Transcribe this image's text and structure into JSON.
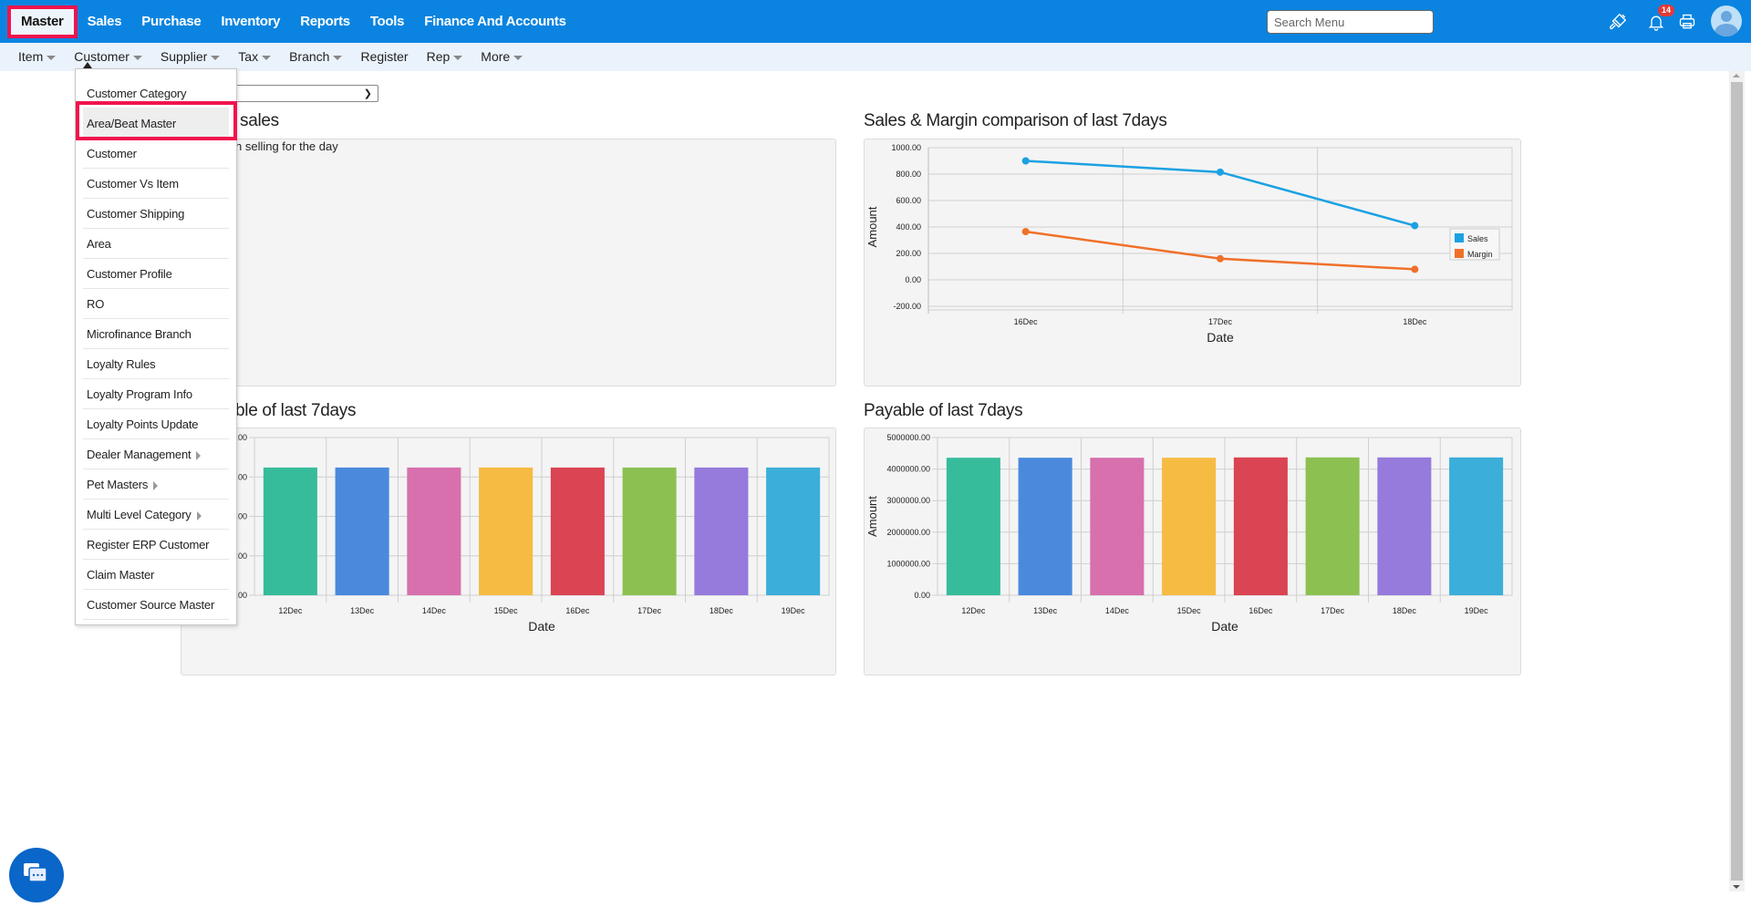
{
  "topnav": {
    "items": [
      {
        "label": "Master",
        "active": true
      },
      {
        "label": "Sales"
      },
      {
        "label": "Purchase"
      },
      {
        "label": "Inventory"
      },
      {
        "label": "Reports"
      },
      {
        "label": "Tools"
      },
      {
        "label": "Finance And Accounts"
      }
    ],
    "search_placeholder": "Search Menu",
    "notification_count": "14",
    "icons": [
      "paint-brush-icon",
      "bell-icon",
      "printer-icon",
      "user-avatar"
    ]
  },
  "subnav": {
    "items": [
      {
        "label": "Item",
        "has_caret": true
      },
      {
        "label": "Customer",
        "has_caret": true
      },
      {
        "label": "Supplier",
        "has_caret": true
      },
      {
        "label": "Tax",
        "has_caret": true
      },
      {
        "label": "Branch",
        "has_caret": true
      },
      {
        "label": "Register",
        "has_caret": false
      },
      {
        "label": "Rep",
        "has_caret": true
      },
      {
        "label": "More",
        "has_caret": true
      }
    ]
  },
  "customer_menu": {
    "items": [
      {
        "label": "Customer Category"
      },
      {
        "label": "Area/Beat Master",
        "hovered": true
      },
      {
        "label": "Customer"
      },
      {
        "label": "Customer Vs Item"
      },
      {
        "label": "Customer Shipping"
      },
      {
        "label": "Area"
      },
      {
        "label": "Customer Profile"
      },
      {
        "label": "RO"
      },
      {
        "label": "Microfinance Branch"
      },
      {
        "label": "Loyalty Rules"
      },
      {
        "label": "Loyalty Program Info"
      },
      {
        "label": "Loyalty Points Update"
      },
      {
        "label": "Dealer Management",
        "submenu": true
      },
      {
        "label": "Pet Masters",
        "submenu": true
      },
      {
        "label": "Multi Level Category",
        "submenu": true
      },
      {
        "label": "Register ERP Customer"
      },
      {
        "label": "Claim Master"
      },
      {
        "label": "Customer Source Master"
      }
    ]
  },
  "dashboard": {
    "top_sales_title": "sales",
    "top_sales_note": "n selling for the day",
    "receivable_title": "ble of last 7days",
    "line_title": "Sales & Margin comparison of last 7days",
    "payable_title": "Payable of last 7days"
  },
  "chart_data": [
    {
      "type": "line",
      "title": "Sales & Margin comparison of last 7days",
      "xlabel": "Date",
      "ylabel": "Amount",
      "categories": [
        "16Dec",
        "17Dec",
        "18Dec"
      ],
      "ylim": [
        -200,
        1000
      ],
      "yticks": [
        "1000.00",
        "800.00",
        "600.00",
        "400.00",
        "200.00",
        "0.00",
        "-200.00"
      ],
      "ytick_values": [
        1000,
        800,
        600,
        400,
        200,
        0,
        -200
      ],
      "grid": true,
      "legend": "right",
      "series": [
        {
          "name": "Sales",
          "color": "#1ba1e2",
          "values": [
            900,
            815,
            410
          ]
        },
        {
          "name": "Margin",
          "color": "#f07029",
          "values": [
            365,
            160,
            80
          ]
        }
      ]
    },
    {
      "type": "bar",
      "title": "Receivable of last 7days (partially hidden)",
      "xlabel": "Date",
      "ylabel": "",
      "categories": [
        "12Dec",
        "13Dec",
        "14Dec",
        "15Dec",
        "16Dec",
        "17Dec",
        "18Dec",
        "19Dec"
      ],
      "ylim": [
        0,
        1
      ],
      "ytick_values": [
        0,
        0.25,
        0.5,
        0.75,
        1
      ],
      "yticks": [
        "0.00",
        ".00",
        ".00",
        ".00",
        ".00"
      ],
      "values": [
        0.81,
        0.81,
        0.81,
        0.81,
        0.81,
        0.81,
        0.81,
        0.81
      ],
      "colors": [
        "#37bc9b",
        "#4a89dc",
        "#d770ad",
        "#f6bb42",
        "#da4453",
        "#8cc152",
        "#967adc",
        "#3baeda"
      ],
      "grid": true
    },
    {
      "type": "bar",
      "title": "Payable of last 7days",
      "xlabel": "Date",
      "ylabel": "Amount",
      "categories": [
        "12Dec",
        "13Dec",
        "14Dec",
        "15Dec",
        "16Dec",
        "17Dec",
        "18Dec",
        "19Dec"
      ],
      "ylim": [
        0,
        5000000
      ],
      "ytick_values": [
        0,
        1000000,
        2000000,
        3000000,
        4000000,
        5000000
      ],
      "yticks": [
        "0.00",
        "1000000.00",
        "2000000.00",
        "3000000.00",
        "4000000.00",
        "5000000.00"
      ],
      "values": [
        4360000,
        4360000,
        4360000,
        4360000,
        4370000,
        4370000,
        4370000,
        4370000
      ],
      "colors": [
        "#37bc9b",
        "#4a89dc",
        "#d770ad",
        "#f6bb42",
        "#da4453",
        "#8cc152",
        "#967adc",
        "#3baeda"
      ],
      "grid": true
    }
  ]
}
